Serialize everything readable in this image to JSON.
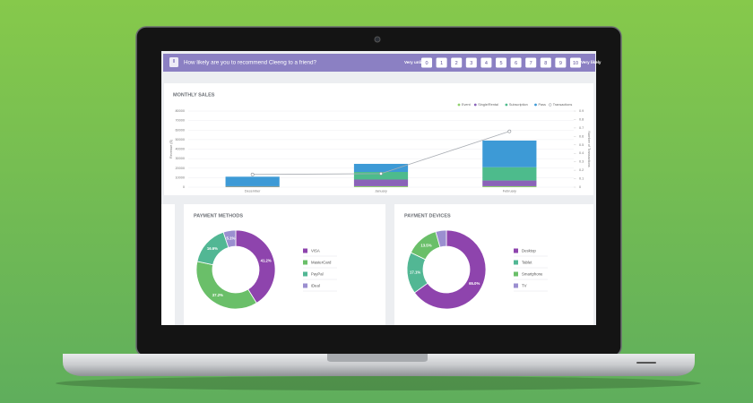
{
  "nps": {
    "question": "How likely are you to recommend Cleeng to a friend?",
    "low_label": "Very unlikely",
    "high_label": "Very likely",
    "scale": [
      0,
      1,
      2,
      3,
      4,
      5,
      6,
      7,
      8,
      9,
      10
    ]
  },
  "chart_data": [
    {
      "type": "bar",
      "stacked": true,
      "title": "MONTHLY SALES",
      "y_label": "Revenue ($)",
      "y2_label": "Number of Transactions",
      "categories": [
        "December",
        "January",
        "February"
      ],
      "series": [
        {
          "name": "Event",
          "color": "#8fd16b",
          "values": [
            500,
            1000,
            1000
          ]
        },
        {
          "name": "Single/Rental",
          "color": "#8a63b8",
          "values": [
            500,
            7000,
            6000
          ]
        },
        {
          "name": "Subscription",
          "color": "#4dbb8c",
          "values": [
            0,
            8000,
            14000
          ]
        },
        {
          "name": "Pass",
          "color": "#3d9ad6",
          "values": [
            10000,
            8500,
            28000
          ]
        },
        {
          "name": "Transactions",
          "type": "line",
          "axis": "y2",
          "color": "#a9adb3",
          "values": [
            0.15,
            0.16,
            0.66
          ]
        }
      ],
      "ylim": [
        0,
        80000
      ],
      "yticks": [
        0,
        10000,
        20000,
        30000,
        40000,
        50000,
        60000,
        70000,
        80000
      ],
      "y2lim": [
        0,
        0.9
      ],
      "y2ticks": [
        0,
        0.1,
        0.2,
        0.3,
        0.4,
        0.5,
        0.6,
        0.7,
        0.8,
        0.9
      ],
      "grid": true,
      "legend": "top-right"
    },
    {
      "type": "pie",
      "donut": true,
      "title": "PAYMENT METHODS",
      "categories": [
        "VISA",
        "MasterCard",
        "PayPal",
        "iDeal"
      ],
      "values": [
        41.2,
        37.2,
        16.6,
        5.1
      ],
      "value_labels": [
        "41.2%",
        "37.2%",
        "16.6%",
        "5.1%"
      ],
      "colors": [
        "#8e44ad",
        "#6abf69",
        "#52b794",
        "#9b8fd0"
      ],
      "legend": "right"
    },
    {
      "type": "pie",
      "donut": true,
      "title": "PAYMENT DEVICES",
      "categories": [
        "Desktop",
        "Tablet",
        "Smartphone",
        "TV"
      ],
      "values": [
        65.0,
        17.1,
        13.5,
        4.4
      ],
      "value_labels": [
        "65.0%",
        "17.1%",
        "13.5%",
        null
      ],
      "colors": [
        "#8e44ad",
        "#52b794",
        "#6abf69",
        "#9b8fd0"
      ],
      "legend": "right"
    }
  ]
}
